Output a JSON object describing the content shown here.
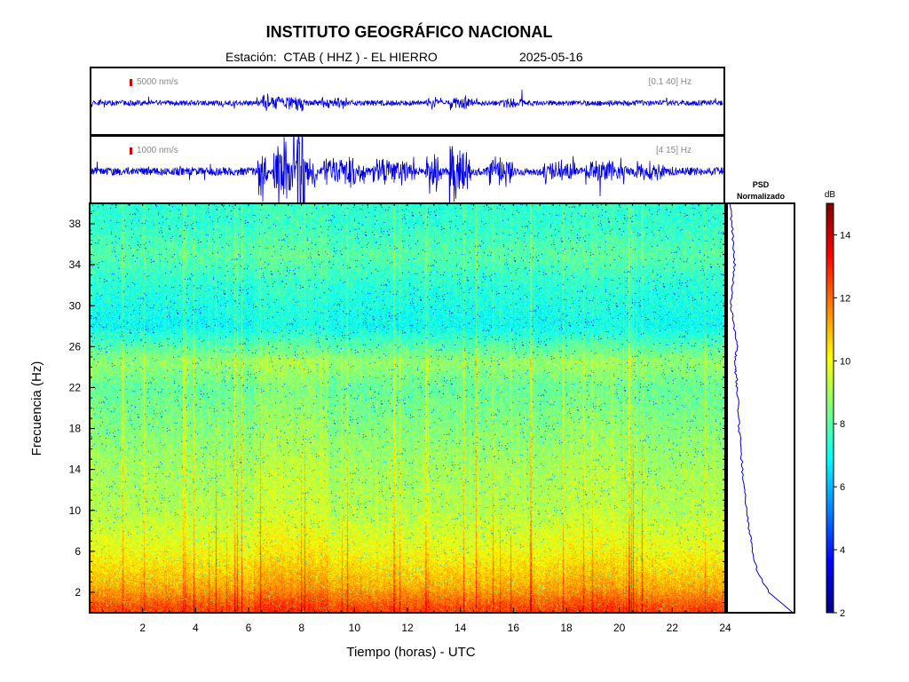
{
  "header": {
    "title": "INSTITUTO GEOGRÁFICO NACIONAL",
    "station_line": "Estación:  CTAB ( HHZ ) - EL HIERRO",
    "date": "2025-05-16"
  },
  "traces": [
    {
      "scale_label": "5000 nm/s",
      "band_label": "[0.1 40] Hz"
    },
    {
      "scale_label": "1000 nm/s",
      "band_label": "[4 15] Hz"
    }
  ],
  "trace_color": "#0000e0",
  "chart_data": [
    {
      "type": "heatmap",
      "xlabel": "Tiempo (horas) - UTC",
      "ylabel": "Frecuencia  (Hz)",
      "xlim": [
        0,
        24
      ],
      "ylim": [
        0,
        40
      ],
      "xticks": [
        2,
        4,
        6,
        8,
        10,
        12,
        14,
        16,
        18,
        20,
        22,
        24
      ],
      "yticks": [
        2,
        6,
        10,
        14,
        18,
        22,
        26,
        30,
        34,
        38
      ],
      "colormap": "jet",
      "grid": false,
      "approx_power_db_by_frequency": [
        {
          "hz": 0.5,
          "db": 12.5
        },
        {
          "hz": 2.5,
          "db": 11.2
        },
        {
          "hz": 6,
          "db": 10
        },
        {
          "hz": 10,
          "db": 9.2
        },
        {
          "hz": 14,
          "db": 9
        },
        {
          "hz": 18,
          "db": 8.6
        },
        {
          "hz": 22,
          "db": 8.2
        },
        {
          "hz": 24.5,
          "db": 8.8
        },
        {
          "hz": 28,
          "db": 7
        },
        {
          "hz": 32,
          "db": 7.4
        },
        {
          "hz": 35,
          "db": 8
        },
        {
          "hz": 38,
          "db": 7.5
        }
      ]
    },
    {
      "type": "line",
      "title": "PSD\nNormalizado",
      "series": [
        {
          "x": [
            0.99,
            0.62,
            0.45,
            0.37,
            0.33,
            0.28,
            0.25,
            0.22,
            0.2,
            0.17,
            0.16,
            0.14,
            0.13,
            0.11,
            0.12,
            0.14,
            0.09,
            0.05,
            0.07,
            0.1,
            0.08,
            0.06,
            0.03
          ],
          "y": [
            0,
            2,
            4,
            6,
            8,
            10,
            12,
            14,
            16,
            18,
            20,
            22,
            23,
            24,
            25,
            26,
            28,
            30,
            32,
            34,
            36,
            38,
            40
          ]
        }
      ]
    },
    {
      "type": "colorbar",
      "title": "dB",
      "ticks": [
        2,
        4,
        6,
        8,
        10,
        12,
        14
      ],
      "range": [
        2,
        15
      ]
    }
  ]
}
